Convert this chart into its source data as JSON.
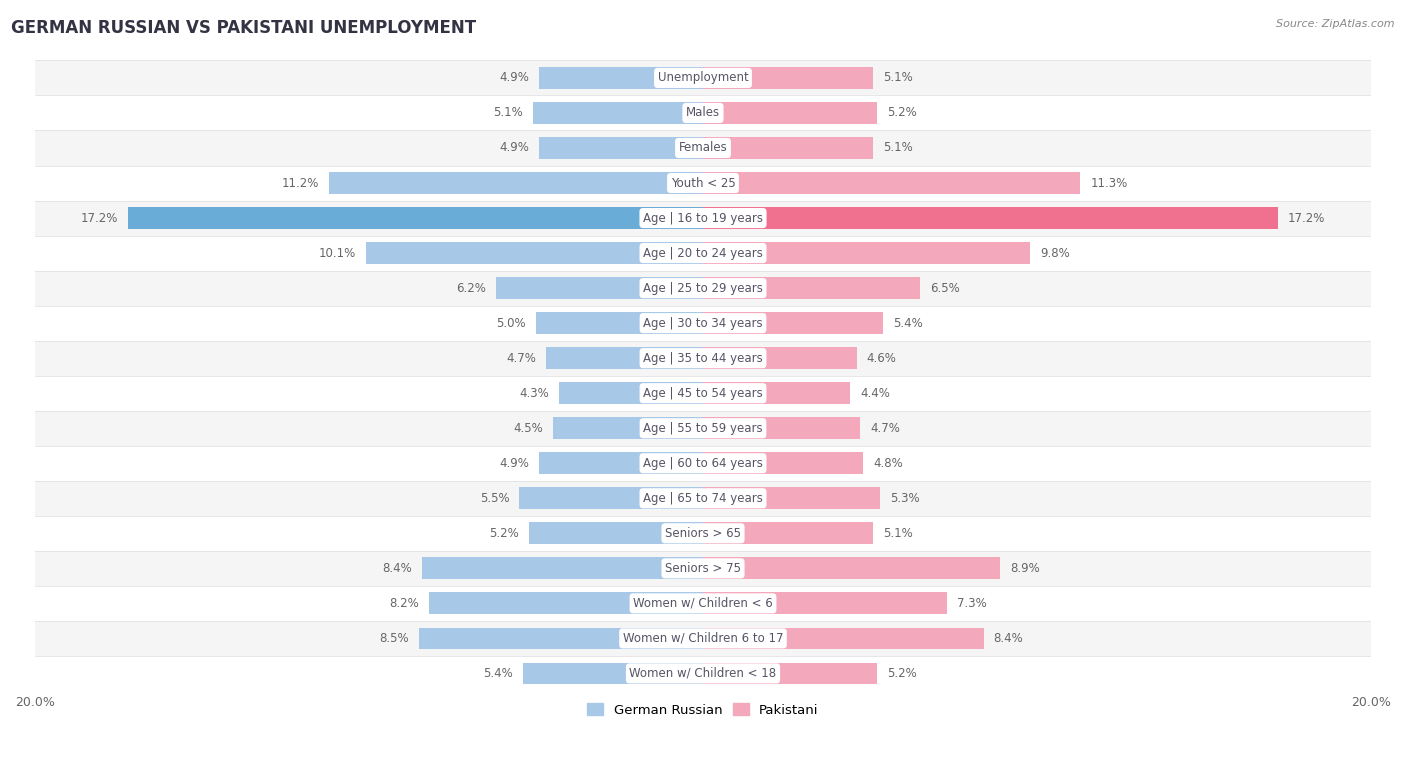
{
  "title": "GERMAN RUSSIAN VS PAKISTANI UNEMPLOYMENT",
  "source": "Source: ZipAtlas.com",
  "categories": [
    "Unemployment",
    "Males",
    "Females",
    "Youth < 25",
    "Age | 16 to 19 years",
    "Age | 20 to 24 years",
    "Age | 25 to 29 years",
    "Age | 30 to 34 years",
    "Age | 35 to 44 years",
    "Age | 45 to 54 years",
    "Age | 55 to 59 years",
    "Age | 60 to 64 years",
    "Age | 65 to 74 years",
    "Seniors > 65",
    "Seniors > 75",
    "Women w/ Children < 6",
    "Women w/ Children 6 to 17",
    "Women w/ Children < 18"
  ],
  "german_russian": [
    4.9,
    5.1,
    4.9,
    11.2,
    17.2,
    10.1,
    6.2,
    5.0,
    4.7,
    4.3,
    4.5,
    4.9,
    5.5,
    5.2,
    8.4,
    8.2,
    8.5,
    5.4
  ],
  "pakistani": [
    5.1,
    5.2,
    5.1,
    11.3,
    17.2,
    9.8,
    6.5,
    5.4,
    4.6,
    4.4,
    4.7,
    4.8,
    5.3,
    5.1,
    8.9,
    7.3,
    8.4,
    5.2
  ],
  "german_russian_color": "#a8c8e8",
  "pakistani_color": "#f4a8bc",
  "german_russian_highlight": "#6aacd8",
  "pakistani_highlight": "#f07090",
  "xlim": 20.0,
  "background_color": "#ffffff",
  "row_bg_odd": "#f5f5f5",
  "row_bg_even": "#ffffff",
  "label_text_color": "#555566",
  "value_text_color": "#666666",
  "legend_german_russian": "German Russian",
  "legend_pakistani": "Pakistani"
}
